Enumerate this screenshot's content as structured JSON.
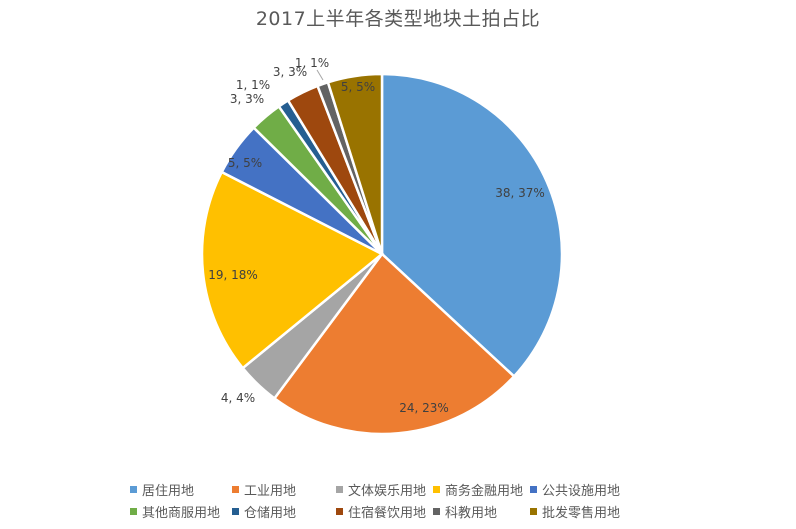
{
  "chart_data": {
    "type": "pie",
    "title": "2017上半年各类型地块土拍占比",
    "categories": [
      "居住用地",
      "工业用地",
      "文体娱乐用地",
      "商务金融用地",
      "公共设施用地",
      "其他商服用地",
      "仓储用地",
      "住宿餐饮用地",
      "科教用地",
      "批发零售用地"
    ],
    "values": [
      38,
      24,
      4,
      19,
      5,
      3,
      1,
      3,
      1,
      5
    ],
    "percentages": [
      37,
      23,
      4,
      18,
      5,
      3,
      1,
      3,
      1,
      5
    ],
    "data_labels": [
      "38, 37%",
      "24, 23%",
      "4, 4%",
      "19, 18%",
      "5, 5%",
      "3, 3%",
      "1, 1%",
      "3, 3%",
      "1, 1%",
      "5, 5%"
    ],
    "colors": [
      "#5B9BD5",
      "#ED7D31",
      "#A5A5A5",
      "#FFC000",
      "#4472C4",
      "#70AD47",
      "#255E91",
      "#9E480E",
      "#636363",
      "#997300"
    ],
    "legend_position": "bottom",
    "start_angle": 0,
    "direction": "clockwise"
  }
}
